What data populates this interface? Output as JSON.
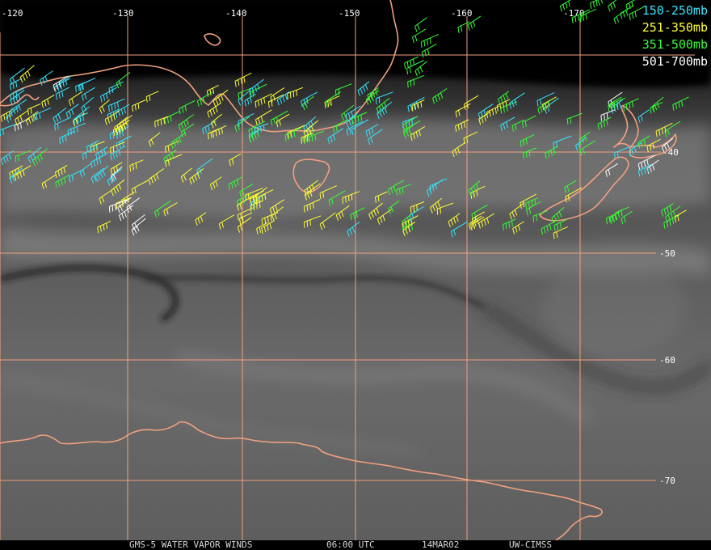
{
  "legend": [
    {
      "label": "150-250mb",
      "color": "#33e6ff"
    },
    {
      "label": "251-350mb",
      "color": "#ffff33"
    },
    {
      "label": "351-500mb",
      "color": "#33ff33"
    },
    {
      "label": "501-700mb",
      "color": "#ffffff"
    }
  ],
  "grid": {
    "longitudes": [
      "-120",
      "-130",
      "-140",
      "-150",
      "-160",
      "-170"
    ],
    "latitudes": [
      "-40",
      "-50",
      "-60",
      "-70"
    ],
    "line_color": "#f0a080"
  },
  "coastline_color": "#f0a080",
  "footer": {
    "product": "GMS-5 WATER VAPOR WINDS",
    "time": "06:00 UTC",
    "date": "14MAR02",
    "source": "UW-CIMSS"
  }
}
